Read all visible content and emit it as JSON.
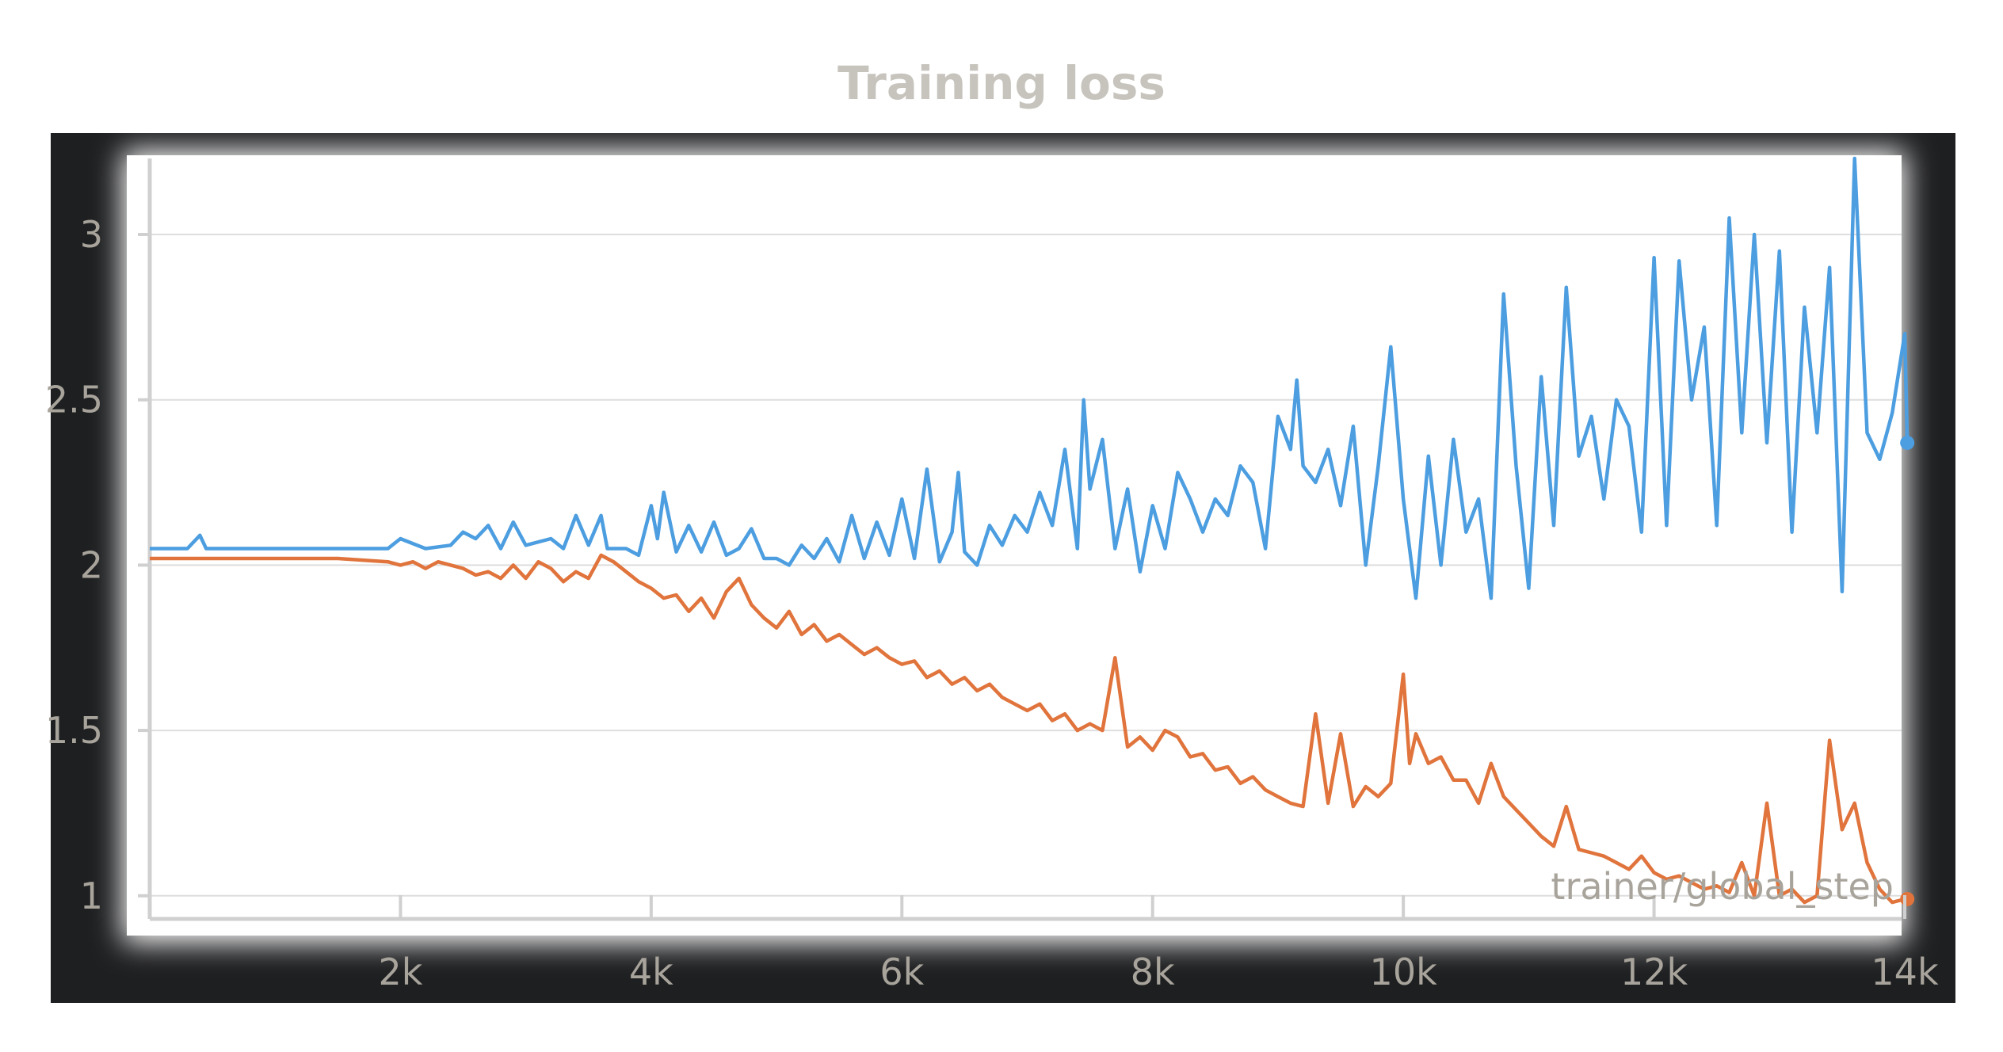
{
  "chart_data": {
    "type": "line",
    "title": "Training loss",
    "xlabel": "trainer/global_step",
    "ylabel": "",
    "xlim": [
      0,
      14000
    ],
    "ylim": [
      0.93,
      3.23
    ],
    "grid": true,
    "x_ticks": [
      2000,
      4000,
      6000,
      8000,
      10000,
      12000,
      14000
    ],
    "x_tick_labels": [
      "2k",
      "4k",
      "6k",
      "8k",
      "10k",
      "12k",
      "14k"
    ],
    "y_ticks": [
      1,
      1.5,
      2,
      2.5,
      3
    ],
    "y_tick_labels": [
      "1",
      "1.5",
      "2",
      "2.5",
      "3"
    ],
    "series": [
      {
        "color": "#4c9ee0",
        "points": [
          [
            0,
            2.05
          ],
          [
            300,
            2.05
          ],
          [
            400,
            2.09
          ],
          [
            450,
            2.05
          ],
          [
            1000,
            2.05
          ],
          [
            1500,
            2.05
          ],
          [
            1900,
            2.05
          ],
          [
            2000,
            2.08
          ],
          [
            2200,
            2.05
          ],
          [
            2400,
            2.06
          ],
          [
            2500,
            2.1
          ],
          [
            2600,
            2.08
          ],
          [
            2700,
            2.12
          ],
          [
            2800,
            2.05
          ],
          [
            2900,
            2.13
          ],
          [
            3000,
            2.06
          ],
          [
            3200,
            2.08
          ],
          [
            3300,
            2.05
          ],
          [
            3400,
            2.15
          ],
          [
            3500,
            2.06
          ],
          [
            3600,
            2.15
          ],
          [
            3650,
            2.05
          ],
          [
            3800,
            2.05
          ],
          [
            3900,
            2.03
          ],
          [
            4000,
            2.18
          ],
          [
            4050,
            2.08
          ],
          [
            4100,
            2.22
          ],
          [
            4200,
            2.04
          ],
          [
            4300,
            2.12
          ],
          [
            4400,
            2.04
          ],
          [
            4500,
            2.13
          ],
          [
            4600,
            2.03
          ],
          [
            4700,
            2.05
          ],
          [
            4800,
            2.11
          ],
          [
            4900,
            2.02
          ],
          [
            5000,
            2.02
          ],
          [
            5100,
            2.0
          ],
          [
            5200,
            2.06
          ],
          [
            5300,
            2.02
          ],
          [
            5400,
            2.08
          ],
          [
            5500,
            2.01
          ],
          [
            5600,
            2.15
          ],
          [
            5700,
            2.02
          ],
          [
            5800,
            2.13
          ],
          [
            5900,
            2.03
          ],
          [
            6000,
            2.2
          ],
          [
            6100,
            2.02
          ],
          [
            6200,
            2.29
          ],
          [
            6300,
            2.01
          ],
          [
            6400,
            2.1
          ],
          [
            6450,
            2.28
          ],
          [
            6500,
            2.04
          ],
          [
            6600,
            2.0
          ],
          [
            6700,
            2.12
          ],
          [
            6800,
            2.06
          ],
          [
            6900,
            2.15
          ],
          [
            7000,
            2.1
          ],
          [
            7100,
            2.22
          ],
          [
            7200,
            2.12
          ],
          [
            7300,
            2.35
          ],
          [
            7400,
            2.05
          ],
          [
            7450,
            2.5
          ],
          [
            7500,
            2.23
          ],
          [
            7600,
            2.38
          ],
          [
            7700,
            2.05
          ],
          [
            7800,
            2.23
          ],
          [
            7900,
            1.98
          ],
          [
            8000,
            2.18
          ],
          [
            8100,
            2.05
          ],
          [
            8200,
            2.28
          ],
          [
            8300,
            2.2
          ],
          [
            8400,
            2.1
          ],
          [
            8500,
            2.2
          ],
          [
            8600,
            2.15
          ],
          [
            8700,
            2.3
          ],
          [
            8800,
            2.25
          ],
          [
            8900,
            2.05
          ],
          [
            9000,
            2.45
          ],
          [
            9100,
            2.35
          ],
          [
            9150,
            2.56
          ],
          [
            9200,
            2.3
          ],
          [
            9300,
            2.25
          ],
          [
            9400,
            2.35
          ],
          [
            9500,
            2.18
          ],
          [
            9600,
            2.42
          ],
          [
            9700,
            2.0
          ],
          [
            9800,
            2.3
          ],
          [
            9900,
            2.66
          ],
          [
            10000,
            2.2
          ],
          [
            10100,
            1.9
          ],
          [
            10200,
            2.33
          ],
          [
            10300,
            2.0
          ],
          [
            10400,
            2.38
          ],
          [
            10500,
            2.1
          ],
          [
            10600,
            2.2
          ],
          [
            10700,
            1.9
          ],
          [
            10800,
            2.82
          ],
          [
            10900,
            2.3
          ],
          [
            11000,
            1.93
          ],
          [
            11100,
            2.57
          ],
          [
            11200,
            2.12
          ],
          [
            11300,
            2.84
          ],
          [
            11400,
            2.33
          ],
          [
            11500,
            2.45
          ],
          [
            11600,
            2.2
          ],
          [
            11700,
            2.5
          ],
          [
            11800,
            2.42
          ],
          [
            11900,
            2.1
          ],
          [
            12000,
            2.93
          ],
          [
            12100,
            2.12
          ],
          [
            12200,
            2.92
          ],
          [
            12300,
            2.5
          ],
          [
            12400,
            2.72
          ],
          [
            12500,
            2.12
          ],
          [
            12600,
            3.05
          ],
          [
            12700,
            2.4
          ],
          [
            12800,
            3.0
          ],
          [
            12900,
            2.37
          ],
          [
            13000,
            2.95
          ],
          [
            13100,
            2.1
          ],
          [
            13200,
            2.78
          ],
          [
            13300,
            2.4
          ],
          [
            13400,
            2.9
          ],
          [
            13500,
            1.92
          ],
          [
            13600,
            3.23
          ],
          [
            13700,
            2.4
          ],
          [
            13800,
            2.32
          ],
          [
            13900,
            2.46
          ],
          [
            14000,
            2.7
          ],
          [
            14020,
            2.37
          ]
        ]
      },
      {
        "color": "#e0743c",
        "points": [
          [
            0,
            2.02
          ],
          [
            500,
            2.02
          ],
          [
            1000,
            2.02
          ],
          [
            1500,
            2.02
          ],
          [
            1900,
            2.01
          ],
          [
            2000,
            2.0
          ],
          [
            2100,
            2.01
          ],
          [
            2200,
            1.99
          ],
          [
            2300,
            2.01
          ],
          [
            2500,
            1.99
          ],
          [
            2600,
            1.97
          ],
          [
            2700,
            1.98
          ],
          [
            2800,
            1.96
          ],
          [
            2900,
            2.0
          ],
          [
            3000,
            1.96
          ],
          [
            3100,
            2.01
          ],
          [
            3200,
            1.99
          ],
          [
            3300,
            1.95
          ],
          [
            3400,
            1.98
          ],
          [
            3500,
            1.96
          ],
          [
            3600,
            2.03
          ],
          [
            3700,
            2.01
          ],
          [
            3800,
            1.98
          ],
          [
            3900,
            1.95
          ],
          [
            4000,
            1.93
          ],
          [
            4100,
            1.9
          ],
          [
            4200,
            1.91
          ],
          [
            4300,
            1.86
          ],
          [
            4400,
            1.9
          ],
          [
            4500,
            1.84
          ],
          [
            4600,
            1.92
          ],
          [
            4700,
            1.96
          ],
          [
            4800,
            1.88
          ],
          [
            4900,
            1.84
          ],
          [
            5000,
            1.81
          ],
          [
            5100,
            1.86
          ],
          [
            5200,
            1.79
          ],
          [
            5300,
            1.82
          ],
          [
            5400,
            1.77
          ],
          [
            5500,
            1.79
          ],
          [
            5600,
            1.76
          ],
          [
            5700,
            1.73
          ],
          [
            5800,
            1.75
          ],
          [
            5900,
            1.72
          ],
          [
            6000,
            1.7
          ],
          [
            6100,
            1.71
          ],
          [
            6200,
            1.66
          ],
          [
            6300,
            1.68
          ],
          [
            6400,
            1.64
          ],
          [
            6500,
            1.66
          ],
          [
            6600,
            1.62
          ],
          [
            6700,
            1.64
          ],
          [
            6800,
            1.6
          ],
          [
            6900,
            1.58
          ],
          [
            7000,
            1.56
          ],
          [
            7100,
            1.58
          ],
          [
            7200,
            1.53
          ],
          [
            7300,
            1.55
          ],
          [
            7400,
            1.5
          ],
          [
            7500,
            1.52
          ],
          [
            7600,
            1.5
          ],
          [
            7700,
            1.72
          ],
          [
            7800,
            1.45
          ],
          [
            7900,
            1.48
          ],
          [
            8000,
            1.44
          ],
          [
            8100,
            1.5
          ],
          [
            8200,
            1.48
          ],
          [
            8300,
            1.42
          ],
          [
            8400,
            1.43
          ],
          [
            8500,
            1.38
          ],
          [
            8600,
            1.39
          ],
          [
            8700,
            1.34
          ],
          [
            8800,
            1.36
          ],
          [
            8900,
            1.32
          ],
          [
            9000,
            1.3
          ],
          [
            9100,
            1.28
          ],
          [
            9200,
            1.27
          ],
          [
            9300,
            1.55
          ],
          [
            9400,
            1.28
          ],
          [
            9500,
            1.49
          ],
          [
            9600,
            1.27
          ],
          [
            9700,
            1.33
          ],
          [
            9800,
            1.3
          ],
          [
            9900,
            1.34
          ],
          [
            10000,
            1.67
          ],
          [
            10050,
            1.4
          ],
          [
            10100,
            1.49
          ],
          [
            10200,
            1.4
          ],
          [
            10300,
            1.42
          ],
          [
            10400,
            1.35
          ],
          [
            10500,
            1.35
          ],
          [
            10600,
            1.28
          ],
          [
            10700,
            1.4
          ],
          [
            10800,
            1.3
          ],
          [
            10900,
            1.26
          ],
          [
            11000,
            1.22
          ],
          [
            11100,
            1.18
          ],
          [
            11200,
            1.15
          ],
          [
            11300,
            1.27
          ],
          [
            11400,
            1.14
          ],
          [
            11500,
            1.13
          ],
          [
            11600,
            1.12
          ],
          [
            11700,
            1.1
          ],
          [
            11800,
            1.08
          ],
          [
            11900,
            1.12
          ],
          [
            12000,
            1.07
          ],
          [
            12100,
            1.05
          ],
          [
            12200,
            1.06
          ],
          [
            12300,
            1.04
          ],
          [
            12400,
            1.02
          ],
          [
            12500,
            1.03
          ],
          [
            12600,
            1.01
          ],
          [
            12700,
            1.1
          ],
          [
            12800,
            1.0
          ],
          [
            12900,
            1.28
          ],
          [
            13000,
            1.0
          ],
          [
            13100,
            1.02
          ],
          [
            13200,
            0.98
          ],
          [
            13300,
            1.0
          ],
          [
            13400,
            1.47
          ],
          [
            13500,
            1.2
          ],
          [
            13600,
            1.28
          ],
          [
            13700,
            1.1
          ],
          [
            13800,
            1.02
          ],
          [
            13900,
            0.98
          ],
          [
            14000,
            0.99
          ],
          [
            14020,
            0.99
          ]
        ]
      }
    ],
    "colors": {
      "blue": "#4c9ee0",
      "orange": "#e0743c",
      "frame": "#1e1f21",
      "grid": "#dcdcdc"
    }
  }
}
